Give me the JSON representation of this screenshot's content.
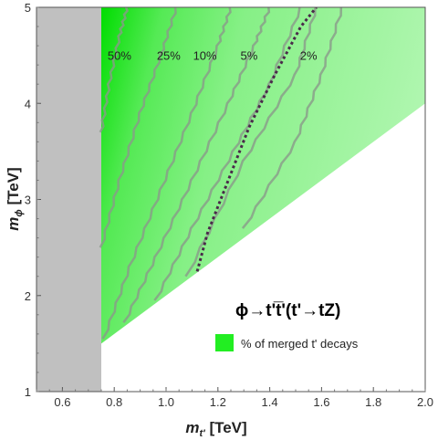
{
  "chart_data": {
    "type": "heatmap",
    "title": "",
    "xlabel": "m_t' [TeV]",
    "ylabel": "m_φ [TeV]",
    "xlim": [
      0.5,
      2.0
    ],
    "ylim": [
      1.0,
      5.0
    ],
    "x_ticks": [
      "0.6",
      "0.8",
      "1.0",
      "1.2",
      "1.4",
      "1.6",
      "1.8",
      "2.0"
    ],
    "y_ticks": [
      "1",
      "2",
      "3",
      "4",
      "5"
    ],
    "excluded_region": {
      "x_max": 0.75,
      "color": "#c0c0c0"
    },
    "kinematic_boundary": [
      [
        0.75,
        1.5
      ],
      [
        2.0,
        4.0
      ]
    ],
    "contours": [
      {
        "label": "50%",
        "points": [
          [
            0.75,
            3.7
          ],
          [
            0.78,
            4.2
          ],
          [
            0.82,
            4.7
          ],
          [
            0.85,
            5.0
          ]
        ]
      },
      {
        "label": "25%",
        "points": [
          [
            0.75,
            2.5
          ],
          [
            0.82,
            3.2
          ],
          [
            0.9,
            3.9
          ],
          [
            0.98,
            4.5
          ],
          [
            1.04,
            5.0
          ]
        ]
      },
      {
        "label": "10%",
        "points": [
          [
            0.76,
            1.55
          ],
          [
            0.86,
            2.3
          ],
          [
            0.98,
            3.1
          ],
          [
            1.1,
            3.9
          ],
          [
            1.2,
            4.6
          ],
          [
            1.25,
            5.0
          ]
        ]
      },
      {
        "label": "5%",
        "points": [
          [
            0.84,
            1.72
          ],
          [
            0.96,
            2.4
          ],
          [
            1.1,
            3.2
          ],
          [
            1.24,
            4.0
          ],
          [
            1.34,
            4.6
          ],
          [
            1.4,
            5.0
          ]
        ]
      },
      {
        "label": "",
        "points": [
          [
            0.96,
            1.95
          ],
          [
            1.1,
            2.7
          ],
          [
            1.26,
            3.5
          ],
          [
            1.4,
            4.2
          ],
          [
            1.52,
            5.0
          ]
        ]
      },
      {
        "label": "",
        "points": [
          [
            1.08,
            2.2
          ],
          [
            1.3,
            3.4
          ],
          [
            1.5,
            4.3
          ],
          [
            1.58,
            5.0
          ]
        ]
      },
      {
        "label": "",
        "points": [
          [
            1.3,
            2.7
          ],
          [
            1.5,
            3.6
          ],
          [
            1.6,
            4.3
          ],
          [
            1.68,
            5.0
          ]
        ]
      }
    ],
    "dashed_contour": {
      "label": "2%",
      "points": [
        [
          1.12,
          2.25
        ],
        [
          1.16,
          2.65
        ],
        [
          1.24,
          3.2
        ],
        [
          1.32,
          3.75
        ],
        [
          1.42,
          4.3
        ],
        [
          1.52,
          4.8
        ],
        [
          1.58,
          5.0
        ]
      ]
    },
    "contour_labels_y": 4.5,
    "contour_label_x": [
      0.82,
      1.01,
      1.15,
      1.32,
      1.55
    ],
    "process_label": "ϕ→t't̅'(t'→tZ)",
    "legend": {
      "label": "% of merged t' decays",
      "color": "#22ee22",
      "placement": "bottom-right"
    },
    "colors": {
      "high": "#00dd00",
      "mid": "#66ee66",
      "low": "#bff5bf",
      "contour": "#8a9a8a",
      "dashed": "#4a2a4a"
    }
  }
}
